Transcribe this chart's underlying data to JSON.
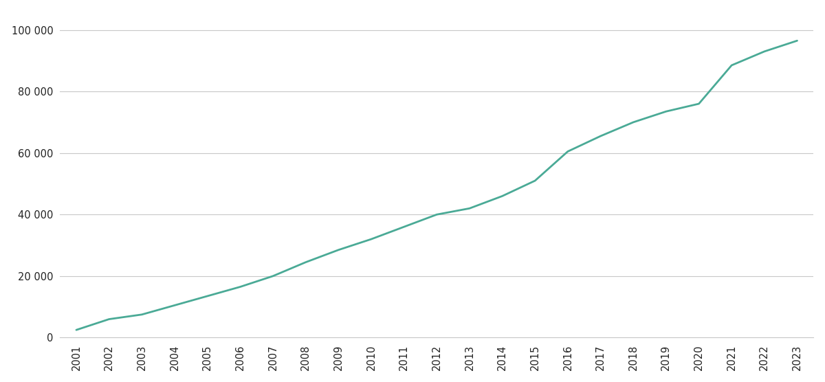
{
  "years": [
    2001,
    2002,
    2003,
    2004,
    2005,
    2006,
    2007,
    2008,
    2009,
    2010,
    2011,
    2012,
    2013,
    2014,
    2015,
    2016,
    2017,
    2018,
    2019,
    2020,
    2021,
    2022,
    2023
  ],
  "values": [
    2500,
    6000,
    7500,
    10500,
    13500,
    16500,
    20000,
    24500,
    28500,
    32000,
    36000,
    40000,
    42000,
    46000,
    51000,
    60500,
    65500,
    70000,
    73500,
    76000,
    88500,
    93000,
    96500
  ],
  "line_color": "#4aaa96",
  "line_width": 2.0,
  "background_color": "#ffffff",
  "grid_color": "#c8c8c8",
  "tick_label_color": "#222222",
  "ylim": [
    0,
    106000
  ],
  "yticks": [
    0,
    20000,
    40000,
    60000,
    80000,
    100000
  ],
  "ytick_labels": [
    "0",
    "20 000",
    "40 000",
    "60 000",
    "80 000",
    "100 000"
  ],
  "tick_fontsize": 10.5
}
